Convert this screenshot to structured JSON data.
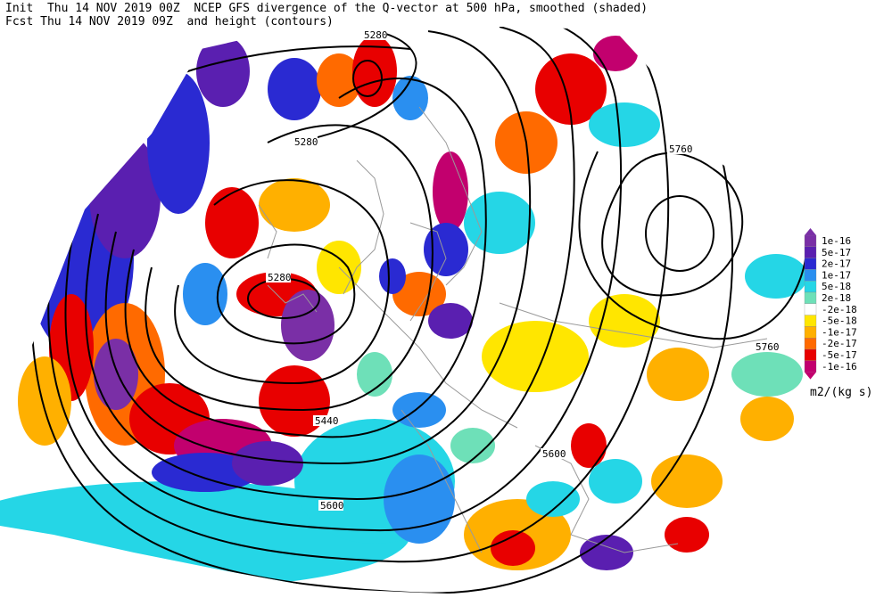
{
  "header": {
    "line1_left": "Init  Thu 14 NOV 2019 00Z",
    "line1_right": "NCEP GFS divergence of the Q-vector at 500 hPa, smoothed (shaded)",
    "line2_left": "Fcst Thu 14 NOV 2019 09Z",
    "line2_right": "and height (contours)"
  },
  "contour_labels": [
    "5280",
    "5280",
    "5280",
    "5760",
    "5760",
    "5440",
    "5600",
    "5600"
  ],
  "legend": {
    "unit": "m2/(kg s)",
    "entries": [
      {
        "label": "1e-16",
        "color": "#7a2fa6"
      },
      {
        "label": "5e-17",
        "color": "#5a1fb0"
      },
      {
        "label": "2e-17",
        "color": "#2a2ad2"
      },
      {
        "label": "1e-17",
        "color": "#2a8ff0"
      },
      {
        "label": "5e-18",
        "color": "#25d6e6"
      },
      {
        "label": "2e-18",
        "color": "#6ee0b8"
      },
      {
        "label": "-2e-18",
        "color": "#ffffff"
      },
      {
        "label": "-5e-18",
        "color": "#ffe600"
      },
      {
        "label": "-1e-17",
        "color": "#ffb000"
      },
      {
        "label": "-2e-17",
        "color": "#ff6a00"
      },
      {
        "label": "-5e-17",
        "color": "#e80000"
      },
      {
        "label": "-1e-16",
        "color": "#c2006e"
      }
    ]
  }
}
